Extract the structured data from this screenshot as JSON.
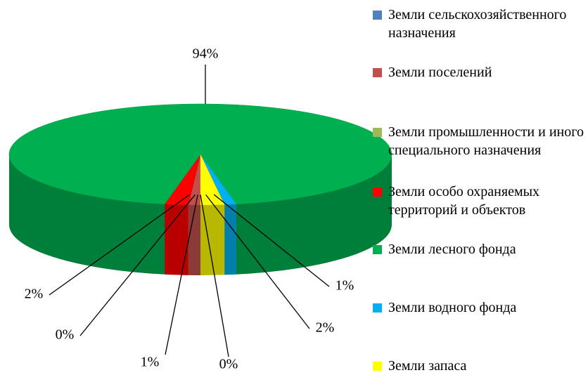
{
  "chart_data": {
    "type": "pie",
    "categories": [
      "Земли сельскохозяйственного назначения",
      "Земли поселений",
      "Земли промышленности и иного специального назначения",
      "Земли особо охраняемых территорий и объектов",
      "Земли лесного фонда",
      "Земли водного фонда",
      "Земли запаса"
    ],
    "values": [
      0,
      1,
      0,
      2,
      94,
      1,
      2
    ],
    "value_labels": [
      "0%",
      "1%",
      "0%",
      "2%",
      "94%",
      "1%",
      "2%"
    ],
    "colors": [
      "#4f81bd",
      "#c0504d",
      "#9bbb59",
      "#ff0000",
      "#00b050",
      "#00b0f0",
      "#ffff00"
    ],
    "legend": "right"
  }
}
